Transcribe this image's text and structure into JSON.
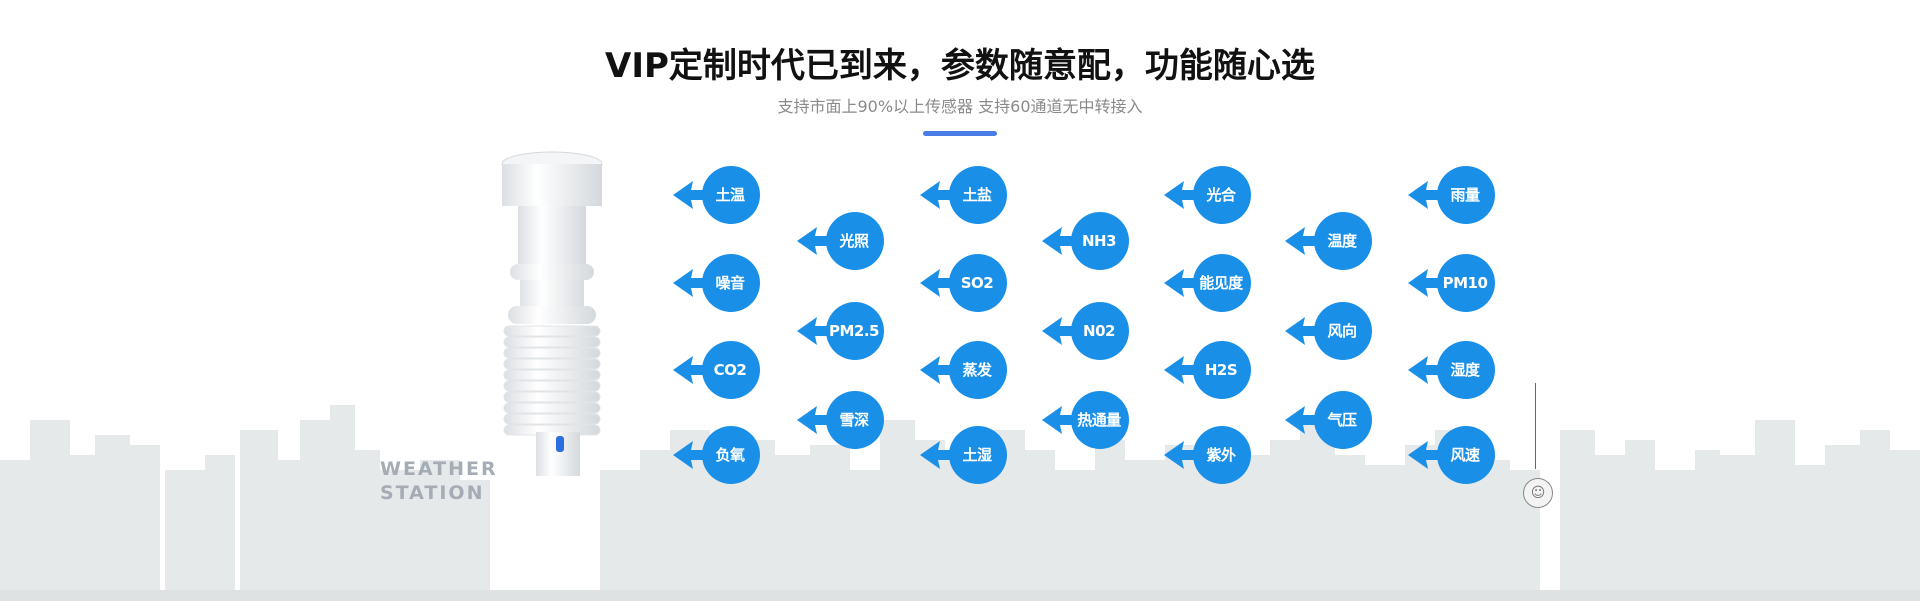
{
  "header": {
    "title": "VIP定制时代已到来，参数随意配，功能随心选",
    "subtitle": "支持市面上90%以上传感器  支持60通道无中转接入"
  },
  "product": {
    "label_line1": "WEATHER",
    "label_line2": "STATION"
  },
  "colors": {
    "accent_bar": "#4a7be8",
    "bubble": "#1a8fe8",
    "skyline": "#e6e9e9"
  },
  "sensor_columns": [
    [
      "土温",
      "噪音",
      "CO2",
      "负氧"
    ],
    [
      "光照",
      "PM2.5",
      "雪深"
    ],
    [
      "土盐",
      "SO2",
      "蒸发",
      "土湿"
    ],
    [
      "NH3",
      "N02",
      "热通量"
    ],
    [
      "光合",
      "能见度",
      "H2S",
      "紫外"
    ],
    [
      "温度",
      "风向",
      "气压"
    ],
    [
      "雨量",
      "PM10",
      "湿度",
      "风速"
    ]
  ],
  "side_icon": "scroll-top-icon"
}
